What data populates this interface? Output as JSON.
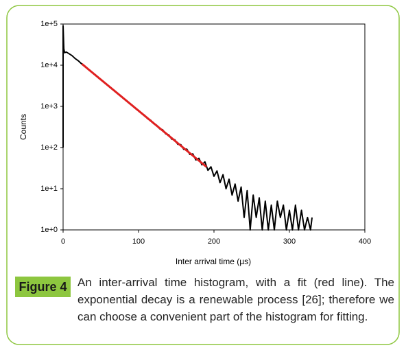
{
  "chart_data": {
    "type": "line",
    "yscale": "log",
    "x_label": "Inter arrival time (µs)",
    "y_label": "Counts",
    "xlim": [
      0,
      400
    ],
    "xticks": [
      0,
      100,
      200,
      300,
      400
    ],
    "ylim": [
      1,
      100000
    ],
    "yticks": [
      {
        "value": 1,
        "label": "1e+0"
      },
      {
        "value": 10,
        "label": "1e+1"
      },
      {
        "value": 100,
        "label": "1e+2"
      },
      {
        "value": 1000,
        "label": "1e+3"
      },
      {
        "value": 10000,
        "label": "1e+4"
      },
      {
        "value": 100000,
        "label": "1e+5"
      }
    ],
    "series": [
      {
        "color": "#000000",
        "x": [
          0,
          0,
          1,
          2,
          4,
          8,
          12,
          16,
          20,
          24,
          28,
          32,
          36,
          40,
          44,
          48,
          52,
          56,
          60,
          64,
          68,
          72,
          76,
          80,
          84,
          88,
          92,
          96,
          100,
          104,
          108,
          112,
          116,
          120,
          124,
          128,
          132,
          136,
          140,
          144,
          148,
          152,
          156,
          160,
          164,
          168,
          172,
          176,
          180,
          184,
          188,
          192,
          196,
          200,
          204,
          208,
          212,
          216,
          220,
          224,
          228,
          232,
          236,
          240,
          244,
          248,
          252,
          256,
          260,
          264,
          268,
          272,
          276,
          280,
          284,
          288,
          292,
          296,
          300,
          304,
          308,
          312,
          316,
          320,
          324,
          328,
          330
        ],
        "values": [
          100,
          90000,
          25000,
          20000,
          21000,
          19000,
          17000,
          14500,
          12900,
          11000,
          9800,
          8300,
          7400,
          6300,
          5600,
          4700,
          4250,
          3600,
          3200,
          2700,
          2450,
          2050,
          1850,
          1550,
          1400,
          1170,
          1060,
          880,
          800,
          670,
          610,
          500,
          465,
          380,
          350,
          285,
          270,
          215,
          205,
          160,
          155,
          120,
          118,
          90,
          92,
          68,
          70,
          50,
          55,
          38,
          45,
          28,
          34,
          20,
          27,
          14,
          22,
          10,
          17,
          7,
          13,
          5,
          11,
          2,
          9,
          1,
          7,
          2,
          6,
          1,
          5,
          1,
          4,
          1,
          5,
          2,
          4,
          1,
          3,
          1,
          4,
          1,
          3,
          1,
          2,
          1,
          2
        ]
      },
      {
        "color": "#e02020",
        "x": [
          25,
          190
        ],
        "values": [
          10700,
          34
        ]
      }
    ]
  },
  "caption": {
    "label": "Figure 4",
    "text": "An inter-arrival time histogram, with a fit (red line). The exponential decay is a renewable process [26]; therefore we can choose a convenient part of the histogram for fitting."
  }
}
